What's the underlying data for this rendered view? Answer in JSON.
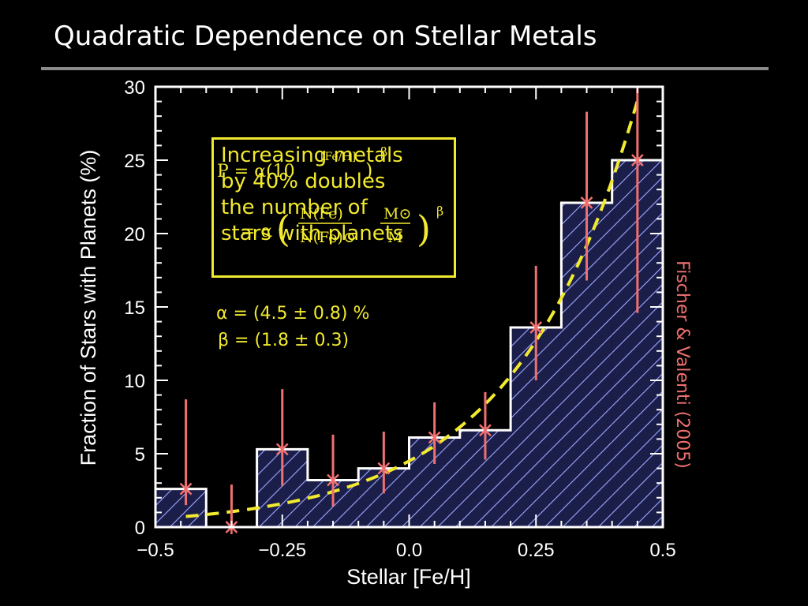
{
  "slide": {
    "title": "Quadratic Dependence on Stellar Metals"
  },
  "chart_data": {
    "type": "bar",
    "xlabel": "Stellar  [Fe/H]",
    "ylabel": "Fraction of Stars with Planets  (%)",
    "xlim": [
      -0.5,
      0.5
    ],
    "ylim": [
      0,
      30
    ],
    "xticks": [
      -0.5,
      -0.25,
      0.0,
      0.25,
      0.5
    ],
    "xtick_labels": [
      "−0.5",
      "−0.25",
      "0.0",
      "0.25",
      "0.5"
    ],
    "yticks": [
      0,
      5,
      10,
      15,
      20,
      25,
      30
    ],
    "ytick_labels": [
      "0",
      "5",
      "10",
      "15",
      "20",
      "25",
      "30"
    ],
    "histogram": {
      "bin_edges": [
        -0.5,
        -0.4,
        -0.3,
        -0.2,
        -0.1,
        0.0,
        0.1,
        0.2,
        0.3,
        0.4,
        0.5
      ],
      "values": [
        2.6,
        0.0,
        5.3,
        3.2,
        4.0,
        6.1,
        6.6,
        13.6,
        22.1,
        25.0
      ]
    },
    "points": [
      {
        "x": -0.44,
        "y": 2.6,
        "yerr_low": 1.5,
        "yerr_high": 8.7
      },
      {
        "x": -0.35,
        "y": 0.0,
        "yerr_low": 0.0,
        "yerr_high": 2.9
      },
      {
        "x": -0.25,
        "y": 5.3,
        "yerr_low": 2.8,
        "yerr_high": 9.4
      },
      {
        "x": -0.15,
        "y": 3.2,
        "yerr_low": 1.4,
        "yerr_high": 6.3
      },
      {
        "x": -0.05,
        "y": 4.0,
        "yerr_low": 2.3,
        "yerr_high": 6.5
      },
      {
        "x": 0.05,
        "y": 6.1,
        "yerr_low": 4.3,
        "yerr_high": 8.5
      },
      {
        "x": 0.15,
        "y": 6.6,
        "yerr_low": 4.6,
        "yerr_high": 9.2
      },
      {
        "x": 0.25,
        "y": 13.6,
        "yerr_low": 10.0,
        "yerr_high": 17.8
      },
      {
        "x": 0.35,
        "y": 22.1,
        "yerr_low": 16.8,
        "yerr_high": 28.3
      },
      {
        "x": 0.45,
        "y": 25.0,
        "yerr_low": 14.6,
        "yerr_high": 30.0
      }
    ],
    "fit": {
      "alpha": 4.5,
      "beta": 1.8,
      "x_range": [
        -0.44,
        0.45
      ]
    },
    "colors": {
      "bars_outline": "#ffffff",
      "hatch": "#9da9ff",
      "points": "#f07070",
      "fit": "#f2ea2e"
    },
    "annotation": {
      "box_text": "Increasing metals\nby 40% doubles\nthe number of\nstars with planets",
      "formula_1_lhs": "P = α(10",
      "formula_1_exp": "[Fe/H]",
      "formula_1_rhs": ")",
      "formula_1_pow": "β",
      "formula_2_lhs": "= α",
      "formula_2_num": "N(Fe)",
      "formula_2_den": "N(Fe)⊙",
      "formula_2_num2": "M⊙",
      "formula_2_den2": "M",
      "formula_2_pow": "β",
      "alpha_text": "α = (4.5 ± 0.8) %",
      "beta_text": "β = (1.8 ± 0.3)"
    },
    "credit": "Fischer & Valenti (2005)"
  }
}
